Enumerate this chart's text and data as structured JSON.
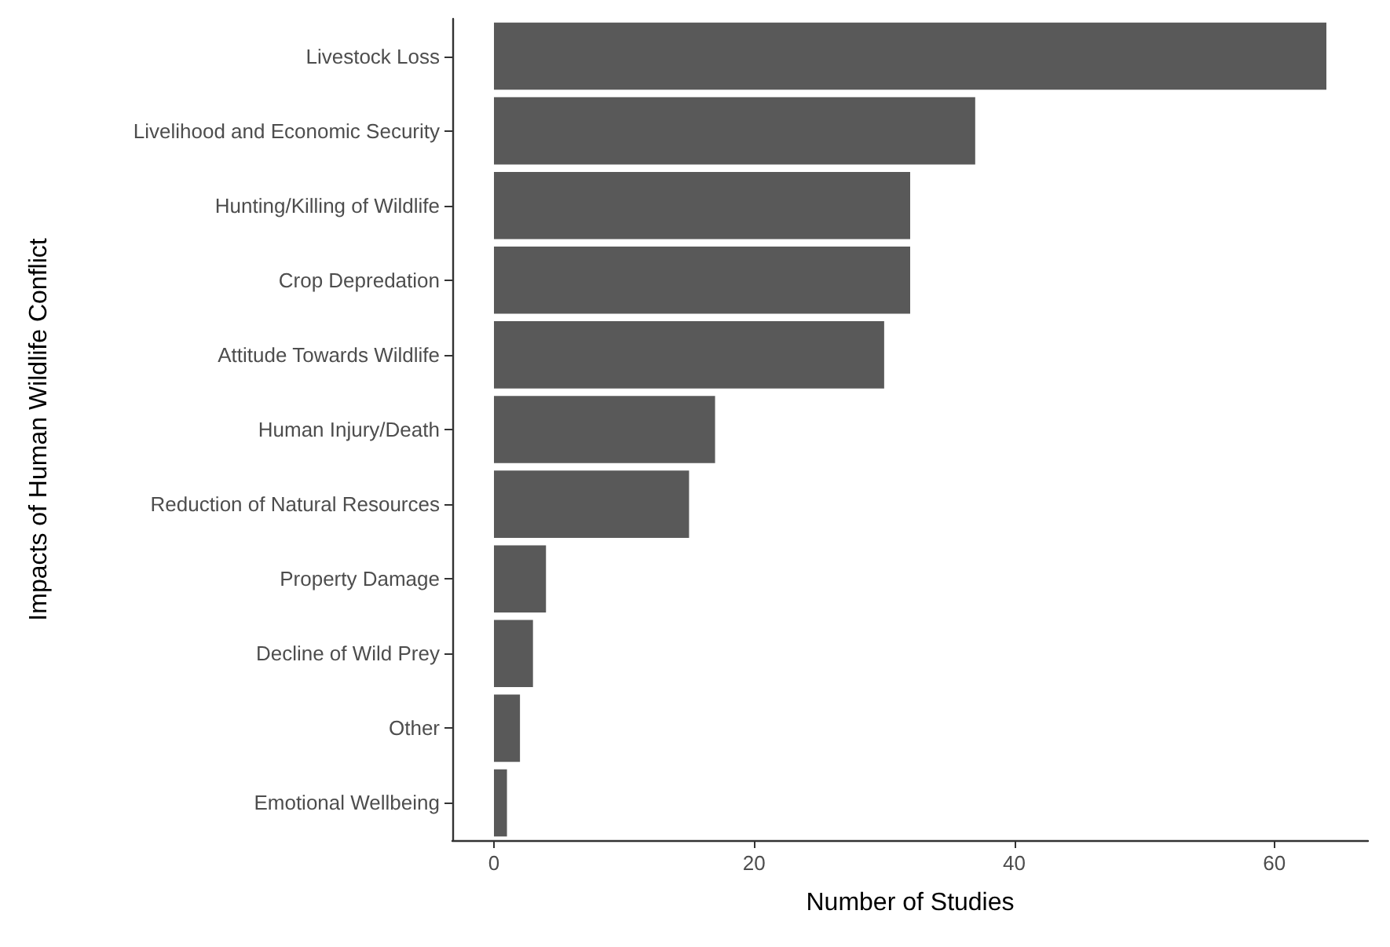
{
  "chart_data": {
    "type": "bar",
    "orientation": "horizontal",
    "xlabel": "Number of Studies",
    "ylabel": "Impacts of Human Wildlife Conflict",
    "categories": [
      "Livestock Loss",
      "Livelihood and Economic Security",
      "Hunting/Killing of Wildlife",
      "Crop Depredation",
      "Attitude Towards Wildlife",
      "Human Injury/Death",
      "Reduction of Natural Resources",
      "Property Damage",
      "Decline of Wild Prey",
      "Other",
      "Emotional Wellbeing"
    ],
    "values": [
      64,
      37,
      32,
      32,
      30,
      17,
      15,
      4,
      3,
      2,
      1
    ],
    "color": "#595959",
    "xlim": [
      -3.2,
      67.2
    ],
    "xticks": [
      0,
      20,
      40,
      60
    ],
    "grid": false
  }
}
